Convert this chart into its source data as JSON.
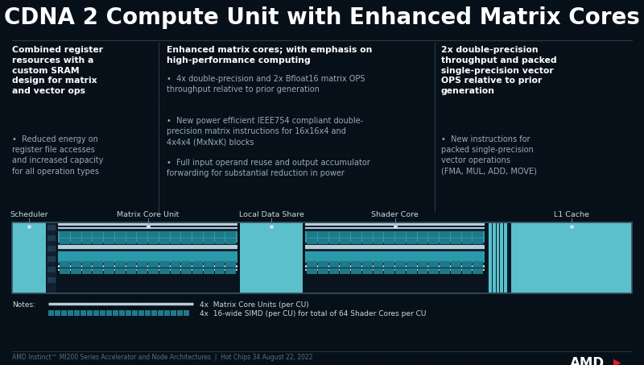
{
  "title": "CDNA 2 Compute Unit with Enhanced Matrix Cores",
  "bg_color": "#071018",
  "title_color": "#ffffff",
  "title_fontsize": 20,
  "col1_header": "Combined register\nresources with a\ncustom SRAM\ndesign for matrix\nand vector ops",
  "col1_bullet": "Reduced energy on\nregister file accesses\nand increased capacity\nfor all operation types",
  "col2_header": "Enhanced matrix cores; with emphasis on\nhigh-performance computing",
  "col2_bullets": [
    "4x double-precision and 2x Bfloat16 matrix OPS\nthroughput relative to prior generation",
    "New power efficient IEEE754 compliant double-\nprecision matrix instructions for 16x16x4 and\n4x4x4 (MxNxK) blocks",
    "Full input operand reuse and output accumulator\nforwarding for substantial reduction in power"
  ],
  "col3_header": "2x double-precision\nthroughput and packed\nsingle-precision vector\nOPS relative to prior\ngeneration",
  "col3_bullet": "New instructions for\npacked single-precision\nvector operations\n(FMA, MUL, ADD, MOVE)",
  "diagram_labels": [
    "Scheduler",
    "Matrix Core Unit",
    "Local Data Share",
    "Shader Core",
    "L1 Cache"
  ],
  "note1": "4x  Matrix Core Units (per CU)",
  "note2": "4x  16-wide SIMD (per CU) for total of 64 Shader Cores per CU",
  "footer": "AMD Instinct™ MI200 Series Accelerator and Node Architectures  |  Hot Chips 34 August 22, 2022",
  "light_blue": "#5bbfcc",
  "dark_stripe": "#152535",
  "medium_blue": "#3a7a8a",
  "white_stripe": "#b8ccd8",
  "teal_cell": "#1e7a8a",
  "teal_cell_bright": "#2a9aaa",
  "label_color": "#c8d8e0",
  "dot_color": "#d0e0ea",
  "sep_color": "#2a3a4a",
  "text_dim": "#9aaabb"
}
